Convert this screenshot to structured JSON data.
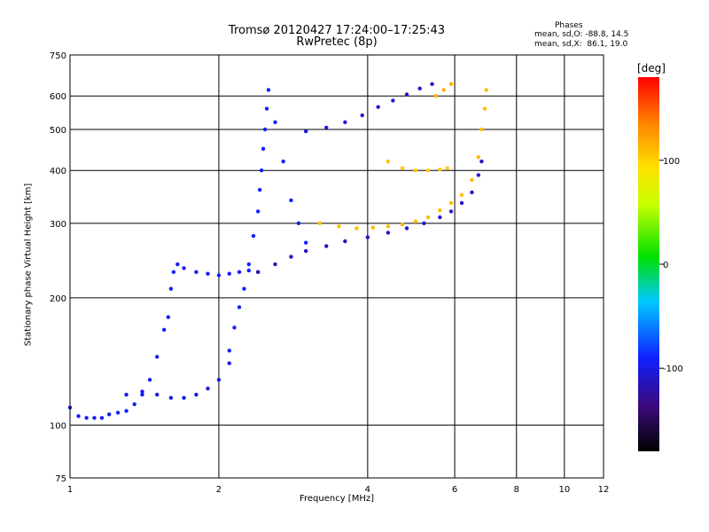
{
  "chart_data": {
    "type": "scatter",
    "title": "Tromsø 20120427 17:24:00–17:25:43",
    "subtitle": "RwPretec (8p)",
    "xlabel": "Frequency [MHz]",
    "ylabel": "Stationary phase Virtual Height [km]",
    "x_scale": "log",
    "y_scale": "log",
    "xlim": [
      1,
      12
    ],
    "ylim": [
      75,
      750
    ],
    "x_ticks": [
      "1",
      "2",
      "4",
      "6",
      "8",
      "10",
      "12"
    ],
    "x_tick_values": [
      1,
      2,
      4,
      6,
      8,
      10,
      12
    ],
    "y_ticks": [
      "75",
      "100",
      "200",
      "300",
      "400",
      "500",
      "600",
      "750"
    ],
    "y_tick_values": [
      75,
      100,
      200,
      300,
      400,
      500,
      600,
      750
    ],
    "grid": true,
    "phase_stats": {
      "header": "Phases",
      "o_line": "mean, sd,O: -88.8, 14.5",
      "x_line": "mean, sd,X:  86.1, 19.0"
    },
    "colorbar": {
      "label": "[deg]",
      "range": [
        -180,
        180
      ],
      "ticks": [
        "100",
        "0",
        "-100"
      ],
      "tick_values": [
        100,
        0,
        -100
      ]
    },
    "series": [
      {
        "phase": -95,
        "points": [
          [
            1.0,
            110
          ],
          [
            1.04,
            105
          ],
          [
            1.08,
            104
          ],
          [
            1.12,
            104
          ],
          [
            1.16,
            104
          ],
          [
            1.2,
            106
          ],
          [
            1.25,
            107
          ],
          [
            1.3,
            108
          ],
          [
            1.35,
            112
          ],
          [
            1.4,
            118
          ],
          [
            1.45,
            128
          ],
          [
            1.5,
            145
          ],
          [
            1.55,
            168
          ],
          [
            1.58,
            180
          ],
          [
            1.6,
            210
          ],
          [
            1.62,
            230
          ],
          [
            1.65,
            240
          ],
          [
            1.7,
            235
          ],
          [
            1.8,
            230
          ],
          [
            1.9,
            228
          ],
          [
            2.0,
            226
          ],
          [
            2.1,
            228
          ],
          [
            2.2,
            230
          ],
          [
            2.3,
            232
          ],
          [
            2.4,
            230
          ]
        ]
      },
      {
        "phase": -100,
        "points": [
          [
            1.3,
            118
          ],
          [
            1.4,
            120
          ],
          [
            1.5,
            118
          ],
          [
            1.6,
            116
          ],
          [
            1.7,
            116
          ],
          [
            1.8,
            118
          ],
          [
            1.9,
            122
          ],
          [
            2.0,
            128
          ],
          [
            2.1,
            140
          ]
        ]
      },
      {
        "phase": -90,
        "points": [
          [
            2.1,
            150
          ],
          [
            2.15,
            170
          ],
          [
            2.2,
            190
          ],
          [
            2.25,
            210
          ],
          [
            2.3,
            240
          ],
          [
            2.35,
            280
          ],
          [
            2.4,
            320
          ],
          [
            2.42,
            360
          ],
          [
            2.44,
            400
          ],
          [
            2.46,
            450
          ],
          [
            2.48,
            500
          ],
          [
            2.5,
            560
          ],
          [
            2.52,
            620
          ],
          [
            2.6,
            520
          ],
          [
            2.7,
            420
          ],
          [
            2.8,
            340
          ],
          [
            2.9,
            300
          ],
          [
            3.0,
            270
          ]
        ]
      },
      {
        "phase": -110,
        "points": [
          [
            2.4,
            230
          ],
          [
            2.6,
            240
          ],
          [
            2.8,
            250
          ],
          [
            3.0,
            258
          ],
          [
            3.3,
            265
          ],
          [
            3.6,
            272
          ],
          [
            4.0,
            278
          ],
          [
            4.4,
            285
          ],
          [
            4.8,
            292
          ],
          [
            5.2,
            300
          ],
          [
            5.6,
            310
          ],
          [
            5.9,
            320
          ],
          [
            6.2,
            335
          ],
          [
            6.5,
            355
          ],
          [
            6.7,
            390
          ],
          [
            6.8,
            420
          ]
        ]
      },
      {
        "phase": -105,
        "points": [
          [
            3.0,
            495
          ],
          [
            3.3,
            505
          ],
          [
            3.6,
            520
          ],
          [
            3.9,
            540
          ],
          [
            4.2,
            565
          ],
          [
            4.5,
            585
          ],
          [
            4.8,
            605
          ],
          [
            5.1,
            625
          ],
          [
            5.4,
            640
          ]
        ]
      },
      {
        "phase": 110,
        "points": [
          [
            3.2,
            300
          ],
          [
            3.5,
            295
          ],
          [
            3.8,
            292
          ],
          [
            4.1,
            293
          ],
          [
            4.4,
            295
          ],
          [
            4.7,
            298
          ],
          [
            5.0,
            303
          ],
          [
            5.3,
            310
          ],
          [
            5.6,
            322
          ],
          [
            5.9,
            335
          ],
          [
            6.2,
            350
          ],
          [
            6.5,
            380
          ],
          [
            6.7,
            430
          ],
          [
            6.8,
            500
          ],
          [
            6.9,
            560
          ],
          [
            6.95,
            620
          ]
        ]
      },
      {
        "phase": 105,
        "points": [
          [
            4.4,
            420
          ],
          [
            4.7,
            405
          ],
          [
            5.0,
            400
          ],
          [
            5.3,
            400
          ],
          [
            5.6,
            402
          ],
          [
            5.8,
            405
          ]
        ]
      },
      {
        "phase": 115,
        "points": [
          [
            5.5,
            600
          ],
          [
            5.7,
            620
          ],
          [
            5.9,
            640
          ]
        ]
      }
    ]
  }
}
